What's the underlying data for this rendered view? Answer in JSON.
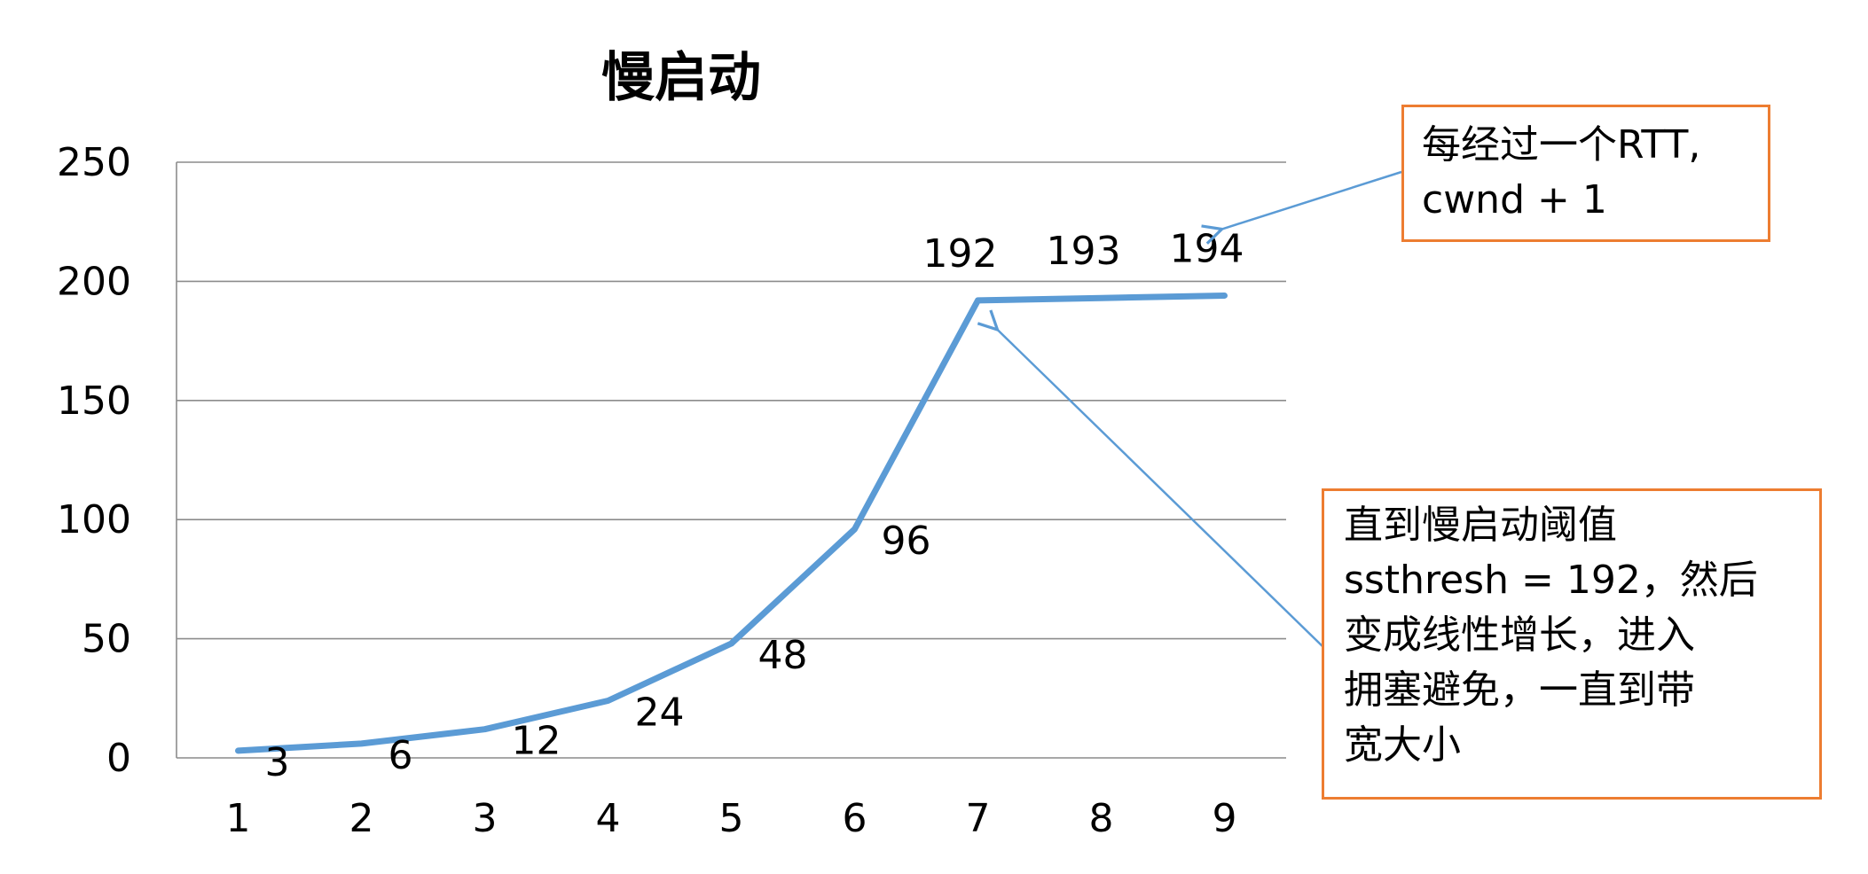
{
  "chart_data": {
    "type": "line",
    "title": "慢启动",
    "categories": [
      "1",
      "2",
      "3",
      "4",
      "5",
      "6",
      "7",
      "8",
      "9"
    ],
    "series": [
      {
        "values": [
          3,
          6,
          12,
          24,
          48,
          96,
          192,
          193,
          194
        ],
        "color": "#5b9bd5"
      }
    ],
    "data_labels": [
      "3",
      "6",
      "12",
      "24",
      "48",
      "96",
      "192",
      "193",
      "194"
    ],
    "ylim": [
      0,
      250
    ],
    "yticks": [
      0,
      50,
      100,
      150,
      200,
      250
    ],
    "grid": true,
    "legend": "none",
    "annotations": [
      {
        "text": "每经过一个RTT,\ncwnd + 1",
        "points_to": {
          "x": "9",
          "y": 194
        }
      },
      {
        "text": "直到慢启动阈值\nssthresh = 192，然后\n变成线性增长，进入\n拥塞避免，一直到带\n宽大小",
        "points_to": {
          "x": "7",
          "y": 192
        }
      }
    ]
  },
  "colors": {
    "line": "#5b9bd5",
    "callout_border": "#ed7d31",
    "arrow": "#5b9bd5",
    "grid": "#8c8c8c"
  }
}
